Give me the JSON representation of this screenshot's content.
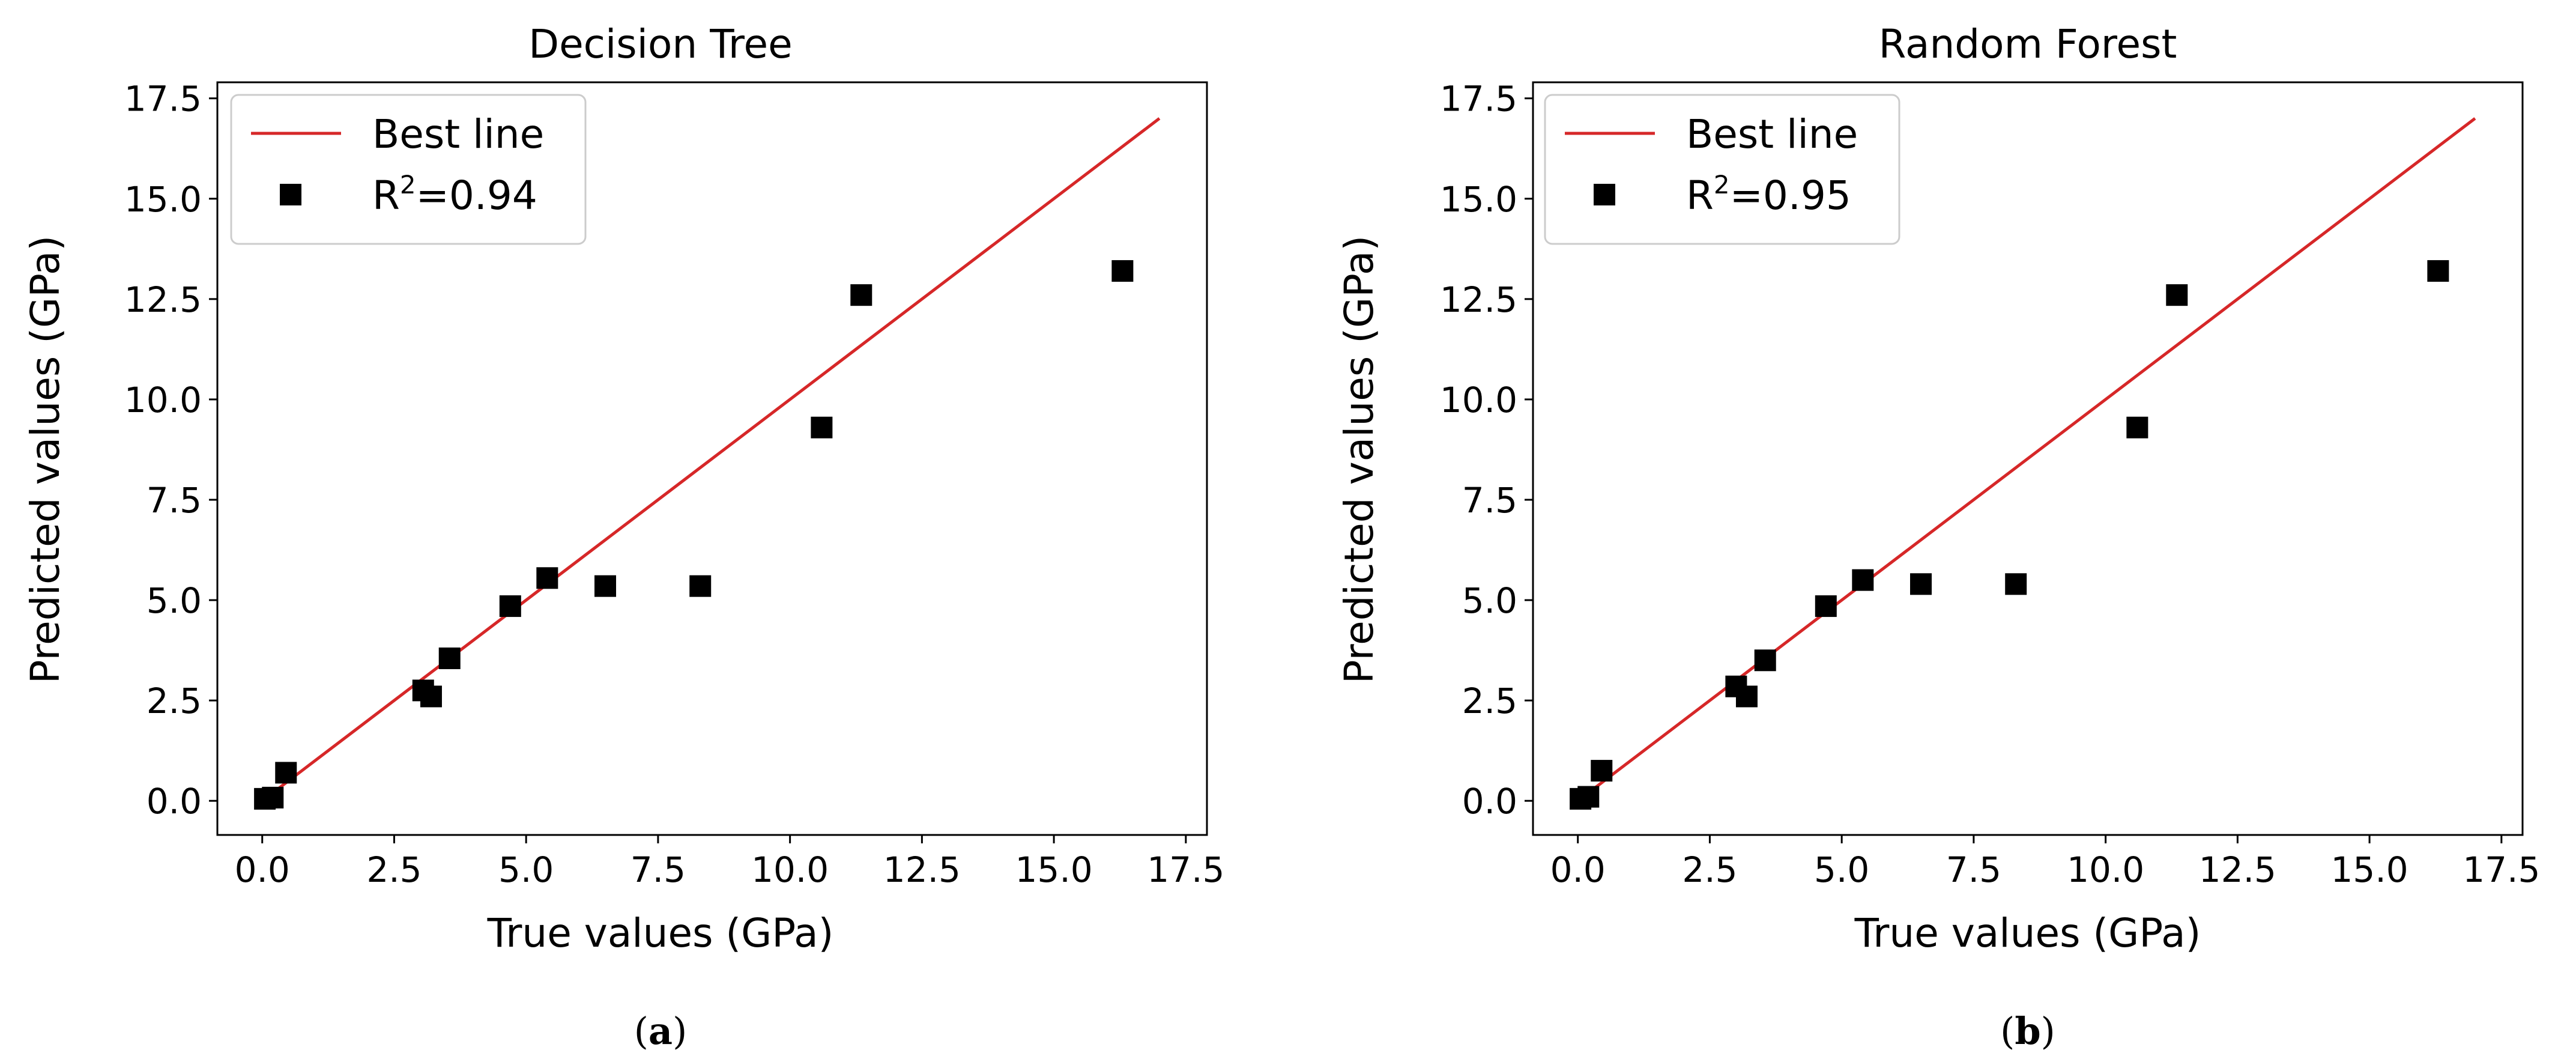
{
  "colors": {
    "best_line": "#d62728",
    "points": "#000000",
    "axes": "#000000"
  },
  "chart_data": [
    {
      "type": "scatter",
      "title": "Decision Tree",
      "panel_label": "a",
      "xlabel": "True values (GPa)",
      "ylabel": "Predicted values (GPa)",
      "xlim": [
        -0.85,
        17.9
      ],
      "ylim": [
        -0.85,
        17.9
      ],
      "xticks": [
        0.0,
        2.5,
        5.0,
        7.5,
        10.0,
        12.5,
        15.0,
        17.5
      ],
      "yticks": [
        0.0,
        2.5,
        5.0,
        7.5,
        10.0,
        12.5,
        15.0,
        17.5
      ],
      "tick_labels": [
        "0.0",
        "2.5",
        "5.0",
        "7.5",
        "10.0",
        "12.5",
        "15.0",
        "17.5"
      ],
      "legend_position": "top-left",
      "series": [
        {
          "name": "Best line",
          "kind": "line",
          "x": [
            0,
            17
          ],
          "y": [
            0,
            17
          ]
        },
        {
          "name": "R²=0.94",
          "kind": "scatter",
          "r2_prefix": "R",
          "r2_sup": "2",
          "r2_value": "=0.94",
          "x": [
            0.05,
            0.2,
            0.45,
            3.05,
            3.2,
            3.55,
            4.7,
            5.4,
            6.5,
            8.3,
            10.6,
            11.35,
            16.3
          ],
          "y": [
            0.05,
            0.08,
            0.7,
            2.75,
            2.6,
            3.55,
            4.85,
            5.55,
            5.35,
            5.35,
            9.3,
            12.6,
            13.2
          ]
        }
      ]
    },
    {
      "type": "scatter",
      "title": "Random Forest",
      "panel_label": "b",
      "xlabel": "True values (GPa)",
      "ylabel": "Predicted values (GPa)",
      "xlim": [
        -0.85,
        17.9
      ],
      "ylim": [
        -0.85,
        17.9
      ],
      "xticks": [
        0.0,
        2.5,
        5.0,
        7.5,
        10.0,
        12.5,
        15.0,
        17.5
      ],
      "yticks": [
        0.0,
        2.5,
        5.0,
        7.5,
        10.0,
        12.5,
        15.0,
        17.5
      ],
      "tick_labels": [
        "0.0",
        "2.5",
        "5.0",
        "7.5",
        "10.0",
        "12.5",
        "15.0",
        "17.5"
      ],
      "legend_position": "top-left",
      "series": [
        {
          "name": "Best line",
          "kind": "line",
          "x": [
            0,
            17
          ],
          "y": [
            0,
            17
          ]
        },
        {
          "name": "R²=0.95",
          "kind": "scatter",
          "r2_prefix": "R",
          "r2_sup": "2",
          "r2_value": "=0.95",
          "x": [
            0.05,
            0.2,
            0.45,
            3.0,
            3.2,
            3.55,
            4.7,
            5.4,
            6.5,
            8.3,
            10.6,
            11.35,
            16.3
          ],
          "y": [
            0.05,
            0.1,
            0.75,
            2.85,
            2.6,
            3.5,
            4.85,
            5.5,
            5.4,
            5.4,
            9.3,
            12.6,
            13.2
          ]
        }
      ]
    }
  ]
}
